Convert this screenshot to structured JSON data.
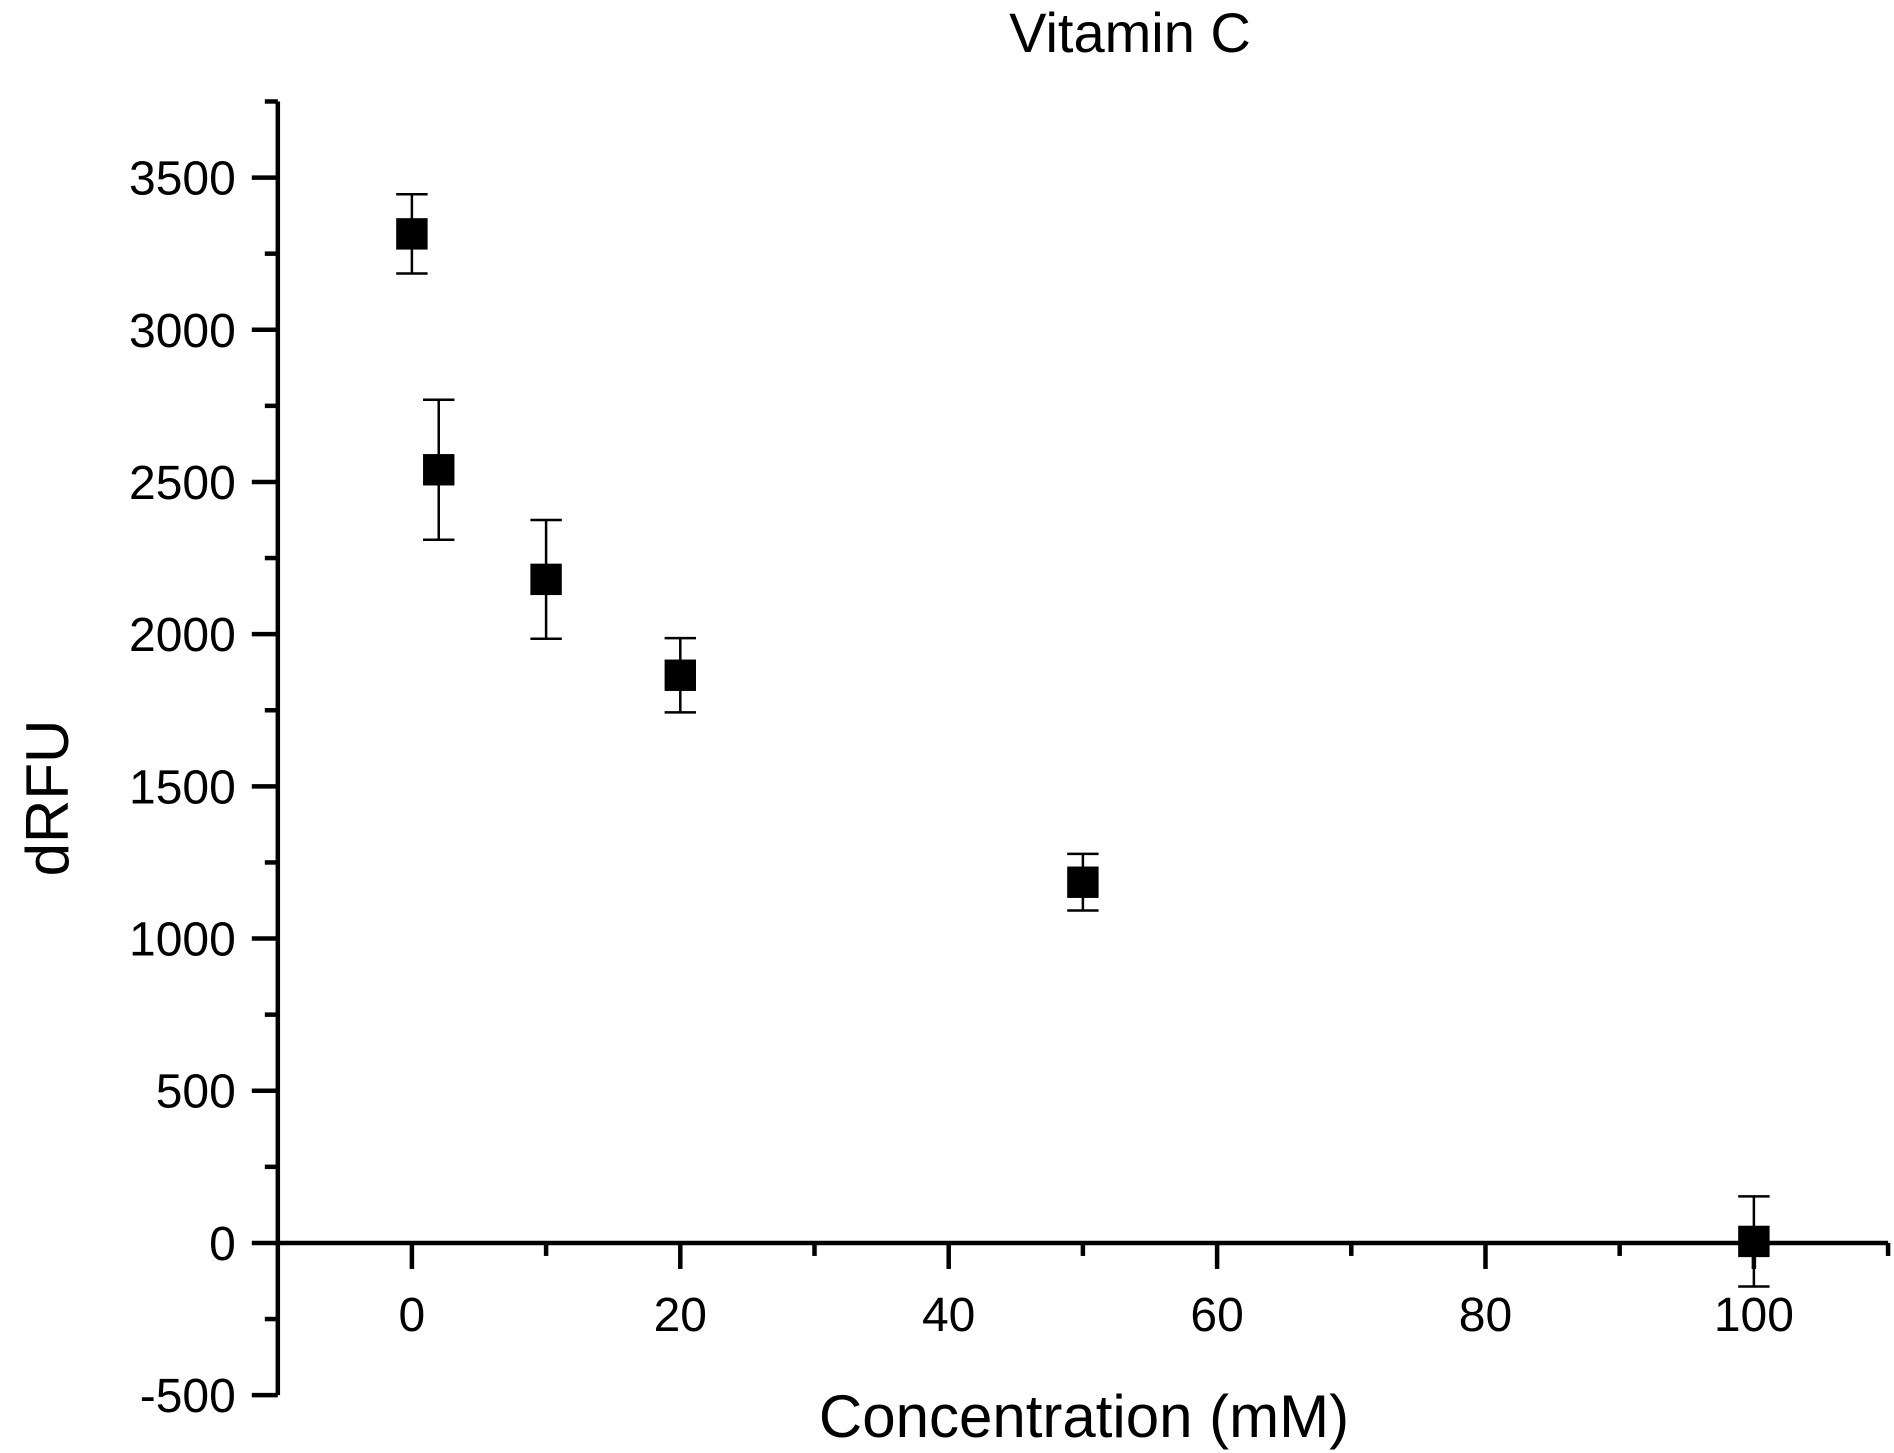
{
  "chart_data": {
    "type": "scatter",
    "title": "Vitamin C",
    "xlabel": "Concentration (mM)",
    "ylabel": "dRFU",
    "xlim": [
      -10,
      110
    ],
    "ylim": [
      -500,
      3750
    ],
    "xticks": [
      0,
      20,
      40,
      60,
      80,
      100
    ],
    "xtick_labels": [
      "0",
      "20",
      "40",
      "60",
      "80",
      "100"
    ],
    "xminor_ticks": [
      10,
      30,
      50,
      70,
      90,
      110
    ],
    "yticks": [
      -500,
      0,
      500,
      1000,
      1500,
      2000,
      2500,
      3000,
      3500
    ],
    "ytick_labels": [
      "-500",
      "0",
      "500",
      "1000",
      "1500",
      "2000",
      "2500",
      "3000",
      "3500"
    ],
    "yminor_ticks": [
      -250,
      250,
      750,
      1250,
      1750,
      2250,
      2750,
      3250,
      3750
    ],
    "grid": false,
    "legend": "none",
    "marker": "square",
    "color": "#000000",
    "series": [
      {
        "name": "Vitamin C",
        "x": [
          0,
          2,
          10,
          20,
          50,
          100
        ],
        "y": [
          3315,
          2540,
          2180,
          1865,
          1185,
          5
        ],
        "error": [
          130,
          230,
          195,
          122,
          93,
          148
        ]
      }
    ]
  }
}
